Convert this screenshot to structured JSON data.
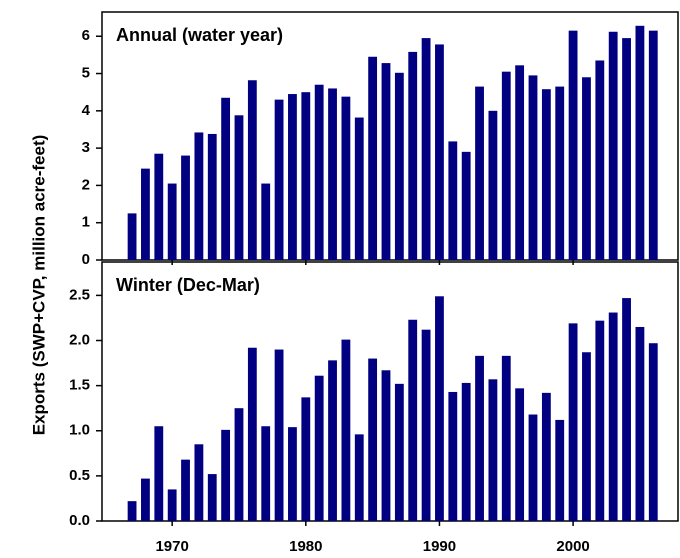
{
  "ylabel": "Exports (SWP+CVP, million acre-feet)",
  "chart_data": [
    {
      "type": "bar",
      "title": "Annual (water year)",
      "color": "#000080",
      "x": [
        1967,
        1968,
        1969,
        1970,
        1971,
        1972,
        1973,
        1974,
        1975,
        1976,
        1977,
        1978,
        1979,
        1980,
        1981,
        1982,
        1983,
        1984,
        1985,
        1986,
        1987,
        1988,
        1989,
        1990,
        1991,
        1992,
        1993,
        1994,
        1995,
        1996,
        1997,
        1998,
        1999,
        2000,
        2001,
        2002,
        2003,
        2004,
        2005,
        2006
      ],
      "values": [
        1.25,
        2.45,
        2.85,
        2.05,
        2.8,
        3.42,
        3.38,
        4.35,
        3.88,
        4.82,
        2.05,
        4.3,
        4.45,
        4.5,
        4.7,
        4.6,
        4.38,
        3.82,
        5.45,
        5.28,
        5.02,
        5.58,
        5.95,
        5.78,
        3.18,
        2.9,
        4.65,
        4.0,
        5.05,
        5.22,
        4.95,
        4.58,
        4.65,
        6.15,
        4.9,
        5.35,
        6.12,
        5.95,
        6.28,
        6.15
      ],
      "xlim": [
        1964.75,
        2007.85
      ],
      "xticks": [
        1970,
        1980,
        1990,
        2000
      ],
      "ylim": [
        0,
        6.65
      ],
      "yticks": [
        0,
        1,
        2,
        3,
        4,
        5,
        6
      ]
    },
    {
      "type": "bar",
      "title": "Winter (Dec-Mar)",
      "color": "#000080",
      "x": [
        1967,
        1968,
        1969,
        1970,
        1971,
        1972,
        1973,
        1974,
        1975,
        1976,
        1977,
        1978,
        1979,
        1980,
        1981,
        1982,
        1983,
        1984,
        1985,
        1986,
        1987,
        1988,
        1989,
        1990,
        1991,
        1992,
        1993,
        1994,
        1995,
        1996,
        1997,
        1998,
        1999,
        2000,
        2001,
        2002,
        2003,
        2004,
        2005,
        2006
      ],
      "values": [
        0.22,
        0.47,
        1.05,
        0.35,
        0.68,
        0.85,
        0.52,
        1.01,
        1.25,
        1.92,
        1.05,
        1.9,
        1.04,
        1.37,
        1.61,
        1.78,
        2.01,
        0.96,
        1.8,
        1.67,
        1.52,
        2.23,
        2.12,
        2.49,
        1.43,
        1.53,
        1.83,
        1.57,
        1.83,
        1.47,
        1.18,
        1.42,
        1.12,
        2.19,
        1.87,
        2.22,
        2.31,
        2.47,
        2.15,
        1.97
      ],
      "xlim": [
        1964.75,
        2007.85
      ],
      "xticks": [
        1970,
        1980,
        1990,
        2000
      ],
      "ylim": [
        0,
        2.87
      ],
      "yticks": [
        {
          "value": 0,
          "label": "0.0"
        },
        0.5,
        {
          "value": 1,
          "label": "1.0"
        },
        1.5,
        {
          "value": 2,
          "label": "2.0"
        },
        2.5
      ]
    }
  ]
}
